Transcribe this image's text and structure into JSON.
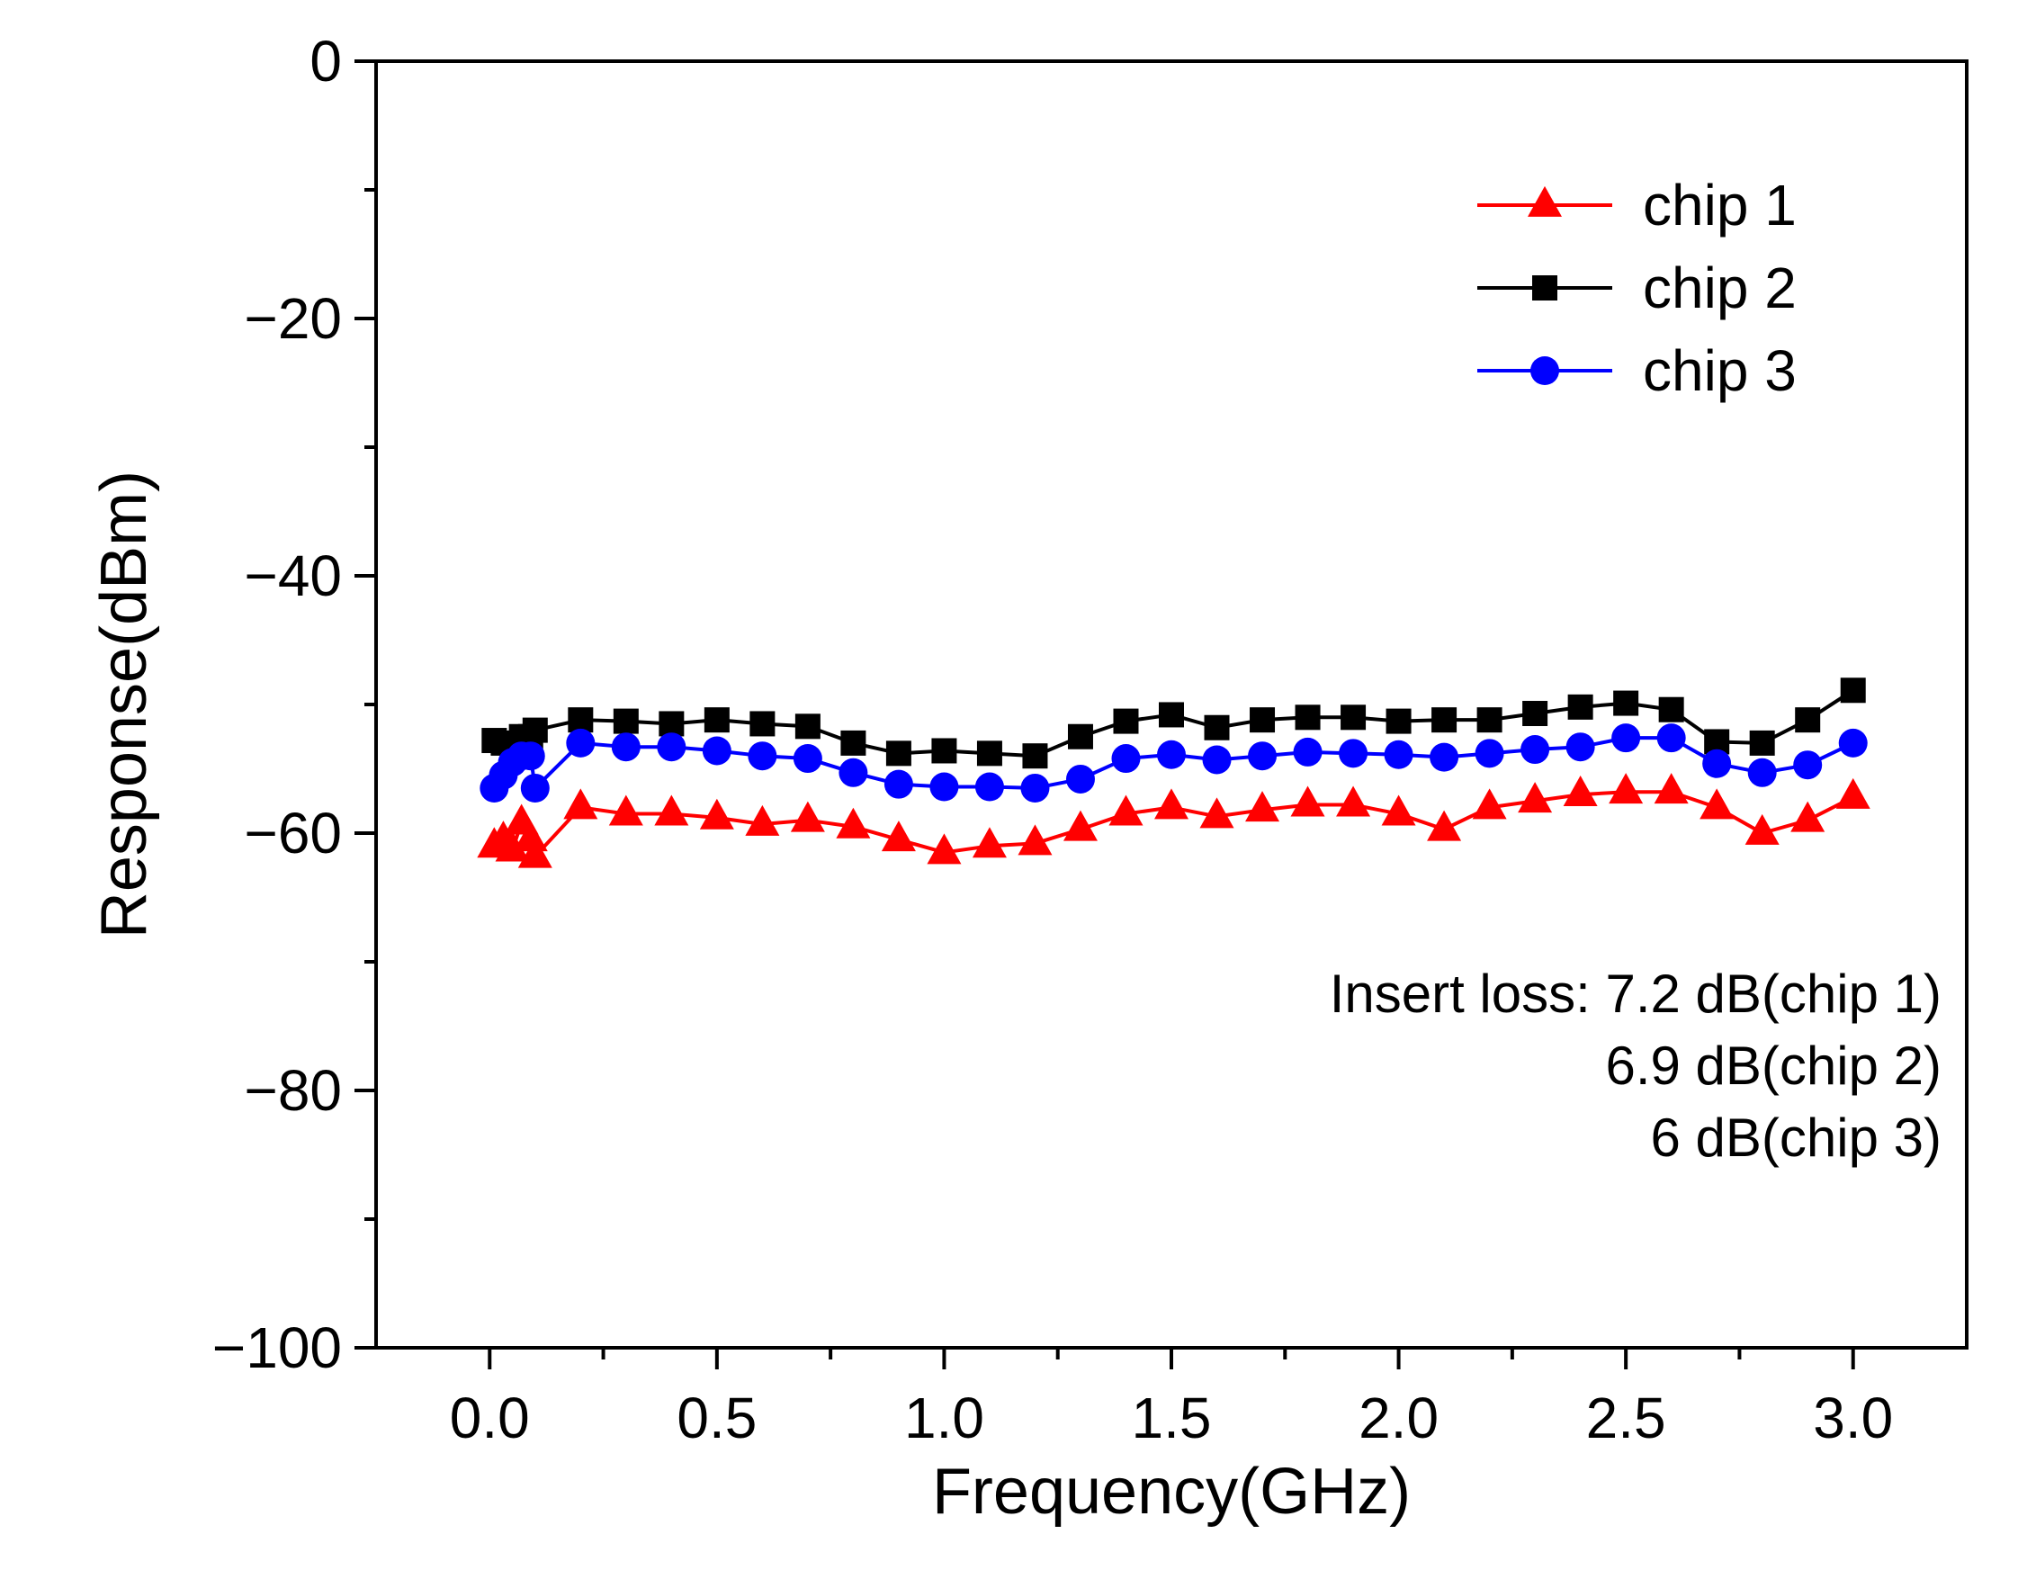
{
  "chart_data": {
    "type": "line",
    "title": "",
    "xlabel": "Frequency(GHz)",
    "ylabel": "Response(dBm)",
    "xlim": [
      -0.25,
      3.25
    ],
    "ylim": [
      -100,
      0
    ],
    "x_major_ticks": [
      0.0,
      0.5,
      1.0,
      1.5,
      2.0,
      2.5,
      3.0
    ],
    "x_tick_labels": [
      "0.0",
      "0.5",
      "1.0",
      "1.5",
      "2.0",
      "2.5",
      "3.0"
    ],
    "x_minor_ticks": [
      0.25,
      0.75,
      1.25,
      1.75,
      2.25,
      2.75
    ],
    "y_major_ticks": [
      0,
      -20,
      -40,
      -60,
      -80,
      -100
    ],
    "y_tick_labels": [
      "0",
      "−20",
      "−40",
      "−60",
      "−80",
      "−100"
    ],
    "y_minor_ticks": [
      -10,
      -30,
      -50,
      -70,
      -90
    ],
    "grid": false,
    "legend_position": "top-right",
    "x": [
      0.01,
      0.03,
      0.05,
      0.07,
      0.09,
      0.1,
      0.2,
      0.3,
      0.4,
      0.5,
      0.6,
      0.7,
      0.8,
      0.9,
      1.0,
      1.1,
      1.2,
      1.3,
      1.4,
      1.5,
      1.6,
      1.7,
      1.8,
      1.9,
      2.0,
      2.1,
      2.2,
      2.3,
      2.4,
      2.5,
      2.6,
      2.7,
      2.8,
      2.9,
      3.0
    ],
    "series": [
      {
        "name": "chip 1",
        "color": "#ff0000",
        "marker": "triangle",
        "values": [
          -61.0,
          -60.5,
          -61.3,
          -59.2,
          -60.5,
          -61.8,
          -58.0,
          -58.5,
          -58.5,
          -58.8,
          -59.3,
          -59.0,
          -59.5,
          -60.5,
          -61.5,
          -61.0,
          -60.8,
          -59.7,
          -58.5,
          -58.0,
          -58.7,
          -58.2,
          -57.8,
          -57.8,
          -58.5,
          -59.7,
          -58.0,
          -57.5,
          -57.0,
          -56.8,
          -56.8,
          -58.0,
          -60.0,
          -59.0,
          -57.2
        ]
      },
      {
        "name": "chip 2",
        "color": "#000000",
        "marker": "square",
        "values": [
          -52.8,
          -53.0,
          -53.5,
          -52.5,
          -52.5,
          -52.0,
          -51.2,
          -51.3,
          -51.5,
          -51.2,
          -51.5,
          -51.7,
          -53.0,
          -53.8,
          -53.6,
          -53.8,
          -54.0,
          -52.5,
          -51.3,
          -50.8,
          -51.8,
          -51.2,
          -51.0,
          -51.0,
          -51.3,
          -51.2,
          -51.2,
          -50.7,
          -50.2,
          -49.9,
          -50.4,
          -52.9,
          -53.0,
          -51.2,
          -48.9
        ]
      },
      {
        "name": "chip 3",
        "color": "#0000ff",
        "marker": "circle",
        "values": [
          -56.5,
          -55.5,
          -54.5,
          -54.0,
          -54.0,
          -56.5,
          -53.0,
          -53.3,
          -53.3,
          -53.6,
          -54.0,
          -54.2,
          -55.3,
          -56.2,
          -56.4,
          -56.4,
          -56.5,
          -55.8,
          -54.2,
          -53.9,
          -54.3,
          -54.0,
          -53.7,
          -53.8,
          -53.9,
          -54.1,
          -53.8,
          -53.5,
          -53.3,
          -52.6,
          -52.6,
          -54.6,
          -55.3,
          -54.7,
          -53.0
        ]
      }
    ],
    "annotations": [
      "Insert loss: 7.2 dB(chip 1)",
      "6.9 dB(chip 2)",
      "6 dB(chip 3)"
    ]
  }
}
